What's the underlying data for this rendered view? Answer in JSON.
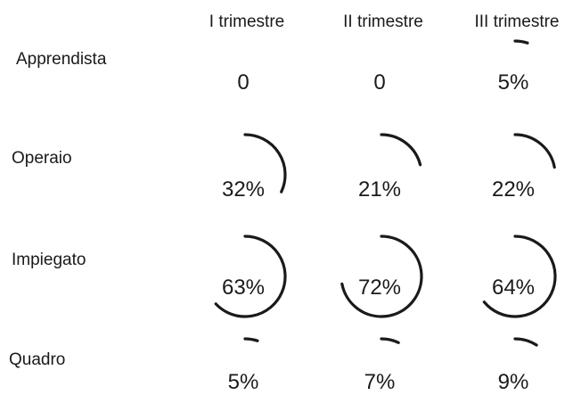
{
  "chart_data": {
    "type": "radial",
    "columns": [
      "I trimestre",
      "II trimestre",
      "III trimestre"
    ],
    "rows": [
      {
        "name": "Apprendista",
        "values": [
          0,
          0,
          5
        ],
        "labels": [
          "0",
          "0",
          "5%"
        ]
      },
      {
        "name": "Operaio",
        "values": [
          32,
          21,
          22
        ],
        "labels": [
          "32%",
          "21%",
          "22%"
        ]
      },
      {
        "name": "Impiegato",
        "values": [
          63,
          72,
          64
        ],
        "labels": [
          "63%",
          "72%",
          "64%"
        ]
      },
      {
        "name": "Quadro",
        "values": [
          5,
          7,
          9
        ],
        "labels": [
          "5%",
          "7%",
          "9%"
        ]
      }
    ],
    "max": 100,
    "arc_color": "#1a1a1a"
  }
}
